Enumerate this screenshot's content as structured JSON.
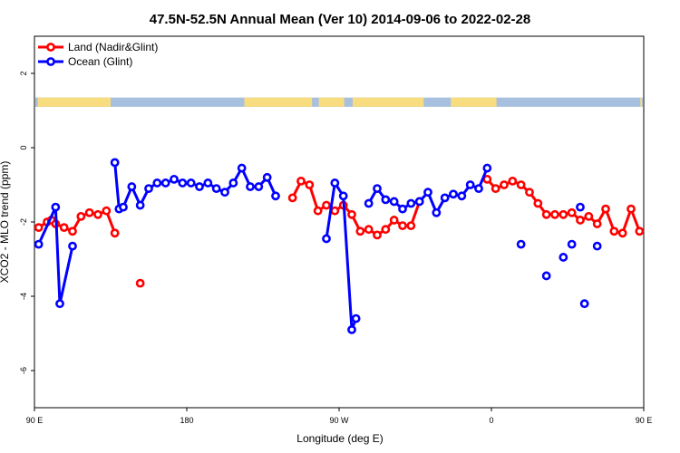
{
  "chart_data": {
    "type": "line",
    "title": "47.5N-52.5N Annual Mean (Ver 10)   2014-09-06 to 2022-02-28",
    "xlabel": "Longitude (deg E)",
    "ylabel": "XCO2 - MLO trend (ppm)",
    "xlim": [
      90,
      450
    ],
    "ylim": [
      -7,
      3
    ],
    "x_ticks": [
      {
        "value": 90,
        "label": "90 E"
      },
      {
        "value": 180,
        "label": "180"
      },
      {
        "value": 270,
        "label": "90 W"
      },
      {
        "value": 360,
        "label": "0"
      },
      {
        "value": 450,
        "label": "90 E"
      },
      {
        "value": 540,
        "label": "180"
      }
    ],
    "y_ticks": [
      {
        "value": 2,
        "label": "2"
      },
      {
        "value": 0,
        "label": "0"
      },
      {
        "value": -2,
        "label": "-2"
      },
      {
        "value": -4,
        "label": "-4"
      },
      {
        "value": -6,
        "label": "-6"
      }
    ],
    "legend_position": "top-left",
    "grid": false,
    "land_band": {
      "y_range": [
        1.1,
        1.35
      ],
      "ocean_color": "#a8c0e0",
      "land_color": "#f8dc80",
      "land_segments": [
        [
          92,
          135
        ],
        [
          214,
          254
        ],
        [
          258,
          273
        ],
        [
          278,
          320
        ],
        [
          336,
          363
        ],
        [
          448,
          449
        ]
      ]
    },
    "series": [
      {
        "name": "Land (Nadir&Glint)",
        "color": "#ff0000",
        "points": [
          [
            92.5,
            -2.15
          ],
          [
            97.5,
            -2.0
          ],
          [
            100,
            -1.95
          ],
          [
            102.5,
            -2.05
          ],
          [
            107.5,
            -2.15
          ],
          [
            112.5,
            -2.25
          ],
          [
            117.5,
            -1.85
          ],
          [
            122.5,
            -1.75
          ],
          [
            127.5,
            -1.8
          ],
          [
            132.5,
            -1.7
          ],
          [
            137.5,
            -2.3
          ],
          [
            152.5,
            -3.65
          ],
          [
            242.5,
            -1.35
          ],
          [
            247.5,
            -0.9
          ],
          [
            252.5,
            -1.0
          ],
          [
            257.5,
            -1.7
          ],
          [
            262.5,
            -1.55
          ],
          [
            267.5,
            -1.7
          ],
          [
            272.5,
            -1.55
          ],
          [
            277.5,
            -1.8
          ],
          [
            282.5,
            -2.25
          ],
          [
            287.5,
            -2.2
          ],
          [
            292.5,
            -2.35
          ],
          [
            297.5,
            -2.2
          ],
          [
            302.5,
            -1.95
          ],
          [
            307.5,
            -2.1
          ],
          [
            312.5,
            -2.1
          ],
          [
            317.5,
            -1.45
          ],
          [
            357.5,
            -0.85
          ],
          [
            362.5,
            -1.1
          ],
          [
            367.5,
            -1.0
          ],
          [
            372.5,
            -0.9
          ],
          [
            377.5,
            -1.0
          ],
          [
            382.5,
            -1.2
          ],
          [
            387.5,
            -1.5
          ],
          [
            392.5,
            -1.8
          ],
          [
            397.5,
            -1.8
          ],
          [
            402.5,
            -1.8
          ],
          [
            407.5,
            -1.75
          ],
          [
            412.5,
            -1.95
          ],
          [
            417.5,
            -1.85
          ],
          [
            422.5,
            -2.05
          ],
          [
            427.5,
            -1.65
          ],
          [
            432.5,
            -2.25
          ],
          [
            437.5,
            -2.3
          ],
          [
            442.5,
            -1.65
          ],
          [
            447.5,
            -2.25
          ]
        ]
      },
      {
        "name": "Ocean (Glint)",
        "color": "#0000ff",
        "points": [
          [
            92.5,
            -2.6
          ],
          [
            102.5,
            -1.6
          ],
          [
            105,
            -4.2
          ],
          [
            112.5,
            -2.65
          ],
          [
            137.5,
            -0.4
          ],
          [
            140,
            -1.65
          ],
          [
            142.5,
            -1.6
          ],
          [
            147.5,
            -1.05
          ],
          [
            152.5,
            -1.55
          ],
          [
            157.5,
            -1.1
          ],
          [
            162.5,
            -0.95
          ],
          [
            167.5,
            -0.95
          ],
          [
            172.5,
            -0.85
          ],
          [
            177.5,
            -0.95
          ],
          [
            182.5,
            -0.95
          ],
          [
            187.5,
            -1.05
          ],
          [
            192.5,
            -0.95
          ],
          [
            197.5,
            -1.1
          ],
          [
            202.5,
            -1.2
          ],
          [
            207.5,
            -0.95
          ],
          [
            212.5,
            -0.55
          ],
          [
            217.5,
            -1.05
          ],
          [
            222.5,
            -1.05
          ],
          [
            227.5,
            -0.8
          ],
          [
            232.5,
            -1.3
          ],
          [
            262.5,
            -2.45
          ],
          [
            267.5,
            -0.95
          ],
          [
            272.5,
            -1.3
          ],
          [
            277.5,
            -4.9
          ],
          [
            280,
            -4.6
          ],
          [
            287.5,
            -1.5
          ],
          [
            292.5,
            -1.1
          ],
          [
            297.5,
            -1.4
          ],
          [
            302.5,
            -1.45
          ],
          [
            307.5,
            -1.65
          ],
          [
            312.5,
            -1.5
          ],
          [
            317.5,
            -1.45
          ],
          [
            322.5,
            -1.2
          ],
          [
            327.5,
            -1.75
          ],
          [
            332.5,
            -1.35
          ],
          [
            337.5,
            -1.25
          ],
          [
            342.5,
            -1.3
          ],
          [
            347.5,
            -1.0
          ],
          [
            352.5,
            -1.1
          ],
          [
            357.5,
            -0.55
          ],
          [
            377.5,
            -2.6
          ],
          [
            392.5,
            -3.45
          ],
          [
            402.5,
            -2.95
          ],
          [
            407.5,
            -2.6
          ],
          [
            412.5,
            -1.6
          ],
          [
            415,
            -4.2
          ],
          [
            422.5,
            -2.65
          ]
        ],
        "segments": [
          [
            0,
            3
          ],
          [
            4,
            24
          ],
          [
            25,
            29
          ],
          [
            30,
            44
          ]
        ]
      }
    ]
  }
}
